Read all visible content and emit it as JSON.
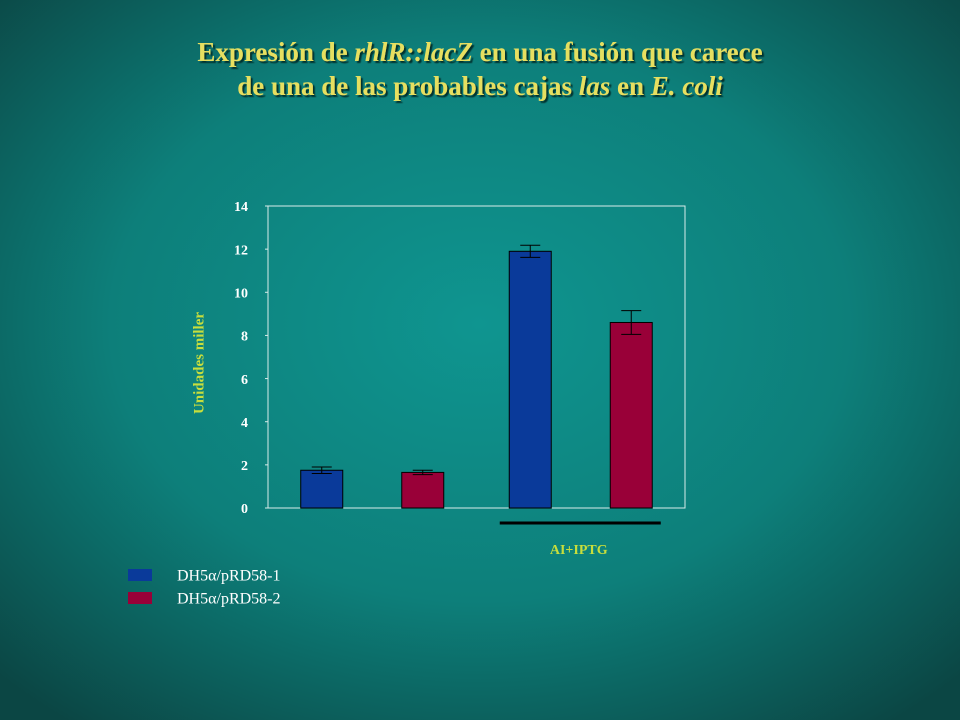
{
  "chart_data": {
    "type": "bar",
    "title": [
      [
        {
          "text": "Expresión de "
        },
        {
          "text": "rhlR::lacZ",
          "italic": true
        },
        {
          "text": " en una fusión que carece"
        }
      ],
      [
        {
          "text": "de una de las probables cajas "
        },
        {
          "text": "las",
          "italic": true
        },
        {
          "text": " en "
        },
        {
          "text": "E. coli",
          "italic": true
        }
      ]
    ],
    "y_label": "Unidades miller",
    "categories": [
      null,
      "AI+IPTG"
    ],
    "series": [
      {
        "name": "DH5α/pRD58-1",
        "color": "#0a3a9a",
        "values": [
          1.75,
          11.9
        ],
        "errors": [
          0.15,
          0.28
        ]
      },
      {
        "name": "DH5α/pRD58-2",
        "color": "#990038",
        "values": [
          1.65,
          8.6
        ],
        "errors": [
          0.1,
          0.55
        ]
      }
    ],
    "ylim": [
      0,
      14
    ],
    "yticks": [
      0,
      2,
      4,
      6,
      8,
      10,
      12,
      14
    ]
  }
}
